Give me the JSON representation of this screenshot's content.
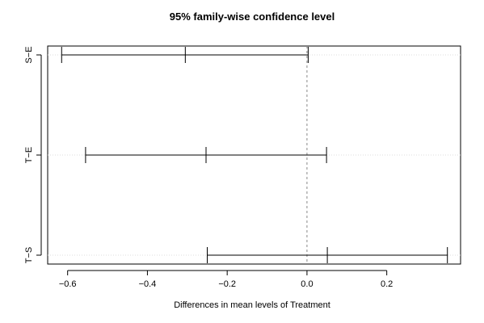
{
  "chart_data": {
    "type": "errorbar",
    "title": "95% family-wise confidence level",
    "xlabel": "Differences in mean levels of Treatment",
    "ylabel": "",
    "xlim": [
      -0.65,
      0.385
    ],
    "xticks": [
      -0.6,
      -0.4,
      -0.2,
      0.0,
      0.2
    ],
    "xtick_labels": [
      "−0.6",
      "−0.4",
      "−0.2",
      "0.0",
      "0.2"
    ],
    "reference_line": 0.0,
    "grid": "horizontal dotted at each comparison",
    "comparisons": [
      {
        "label": "S−E",
        "lwr": -0.615,
        "diff": -0.305,
        "upr": 0.003
      },
      {
        "label": "T−E",
        "lwr": -0.555,
        "diff": -0.253,
        "upr": 0.049
      },
      {
        "label": "T−S",
        "lwr": -0.25,
        "diff": 0.051,
        "upr": 0.352
      }
    ]
  }
}
